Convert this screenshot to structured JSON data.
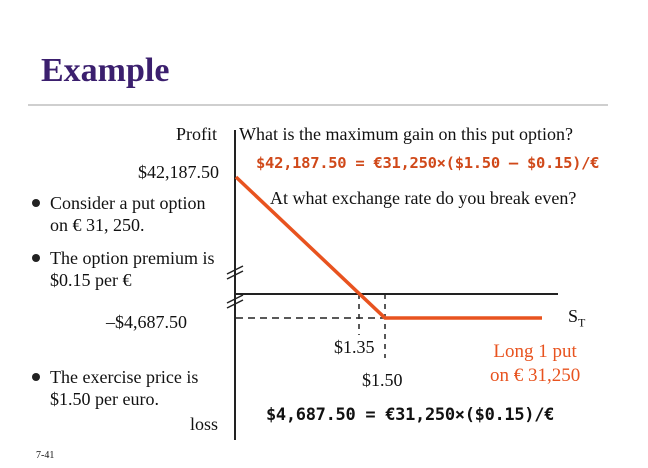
{
  "title": "Example",
  "axes": {
    "y_top_label": "Profit",
    "y_bottom_label": "loss",
    "x_label": "S",
    "x_label_sub": "T"
  },
  "y_values": {
    "max_gain": "$42,187.50",
    "max_loss": "–$4,687.50"
  },
  "x_values": {
    "breakeven": "$1.35",
    "strike": "$1.50"
  },
  "questions": {
    "max_gain": "What is the maximum gain on this put option?",
    "breakeven": "At what exchange rate do you break even?"
  },
  "handwritten": {
    "gain_calc": "$42,187.50 = €31,250×($1.50 – $0.15)/€",
    "loss_calc": "$4,687.50 = €31,250×($0.15)/€"
  },
  "bullets": [
    "Consider a put option on € 31, 250.",
    "The option premium is $0.15 per €",
    "The exercise price is $1.50 per euro."
  ],
  "legend": {
    "line1": "Long 1 put",
    "line2": "on € 31,250"
  },
  "slide_number": "7-41",
  "colors": {
    "title": "#3b1f6e",
    "payoff_line": "#e8531f",
    "axis": "#222222"
  }
}
